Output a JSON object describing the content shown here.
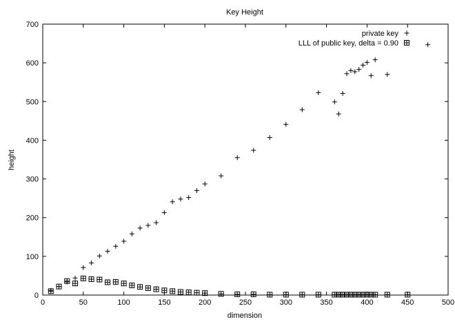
{
  "chart_data": {
    "type": "scatter",
    "title": "Key Height",
    "xlabel": "dimension",
    "ylabel": "height",
    "xlim": [
      0,
      500
    ],
    "ylim": [
      0,
      700
    ],
    "xticks": [
      0,
      50,
      100,
      150,
      200,
      250,
      300,
      350,
      400,
      450,
      500
    ],
    "yticks": [
      0,
      100,
      200,
      300,
      400,
      500,
      600,
      700
    ],
    "grid": false,
    "legend_position": "top-right",
    "series": [
      {
        "name": "private key",
        "marker": "plus",
        "points": [
          [
            10,
            12
          ],
          [
            20,
            22
          ],
          [
            30,
            34
          ],
          [
            40,
            44
          ],
          [
            50,
            71
          ],
          [
            60,
            83
          ],
          [
            70,
            101
          ],
          [
            80,
            113
          ],
          [
            90,
            126
          ],
          [
            100,
            139
          ],
          [
            110,
            158
          ],
          [
            120,
            173
          ],
          [
            130,
            180
          ],
          [
            140,
            187
          ],
          [
            150,
            213
          ],
          [
            160,
            241
          ],
          [
            170,
            248
          ],
          [
            180,
            252
          ],
          [
            190,
            270
          ],
          [
            200,
            287
          ],
          [
            220,
            308
          ],
          [
            240,
            355
          ],
          [
            260,
            374
          ],
          [
            280,
            407
          ],
          [
            300,
            441
          ],
          [
            320,
            479
          ],
          [
            340,
            523
          ],
          [
            360,
            499
          ],
          [
            365,
            468
          ],
          [
            370,
            521
          ],
          [
            375,
            572
          ],
          [
            380,
            580
          ],
          [
            385,
            577
          ],
          [
            390,
            583
          ],
          [
            395,
            594
          ],
          [
            400,
            601
          ],
          [
            405,
            567
          ],
          [
            410,
            608
          ],
          [
            425,
            570
          ],
          [
            475,
            647
          ]
        ]
      },
      {
        "name": "LLL of public key, delta = 0.90",
        "marker": "boxed-plus",
        "points": [
          [
            10,
            10
          ],
          [
            20,
            22
          ],
          [
            30,
            36
          ],
          [
            40,
            30
          ],
          [
            50,
            43
          ],
          [
            60,
            41
          ],
          [
            70,
            40
          ],
          [
            80,
            33
          ],
          [
            90,
            34
          ],
          [
            100,
            30
          ],
          [
            110,
            25
          ],
          [
            120,
            21
          ],
          [
            130,
            18
          ],
          [
            140,
            15
          ],
          [
            150,
            12
          ],
          [
            160,
            10
          ],
          [
            170,
            8
          ],
          [
            180,
            7
          ],
          [
            190,
            6
          ],
          [
            200,
            5
          ],
          [
            220,
            3
          ],
          [
            240,
            2
          ],
          [
            260,
            2
          ],
          [
            280,
            1
          ],
          [
            300,
            1
          ],
          [
            320,
            1
          ],
          [
            340,
            1
          ],
          [
            360,
            1
          ],
          [
            365,
            1
          ],
          [
            370,
            1
          ],
          [
            375,
            1
          ],
          [
            380,
            1
          ],
          [
            385,
            1
          ],
          [
            390,
            1
          ],
          [
            395,
            1
          ],
          [
            400,
            1
          ],
          [
            405,
            1
          ],
          [
            410,
            1
          ],
          [
            425,
            1
          ],
          [
            450,
            1
          ]
        ]
      }
    ]
  }
}
